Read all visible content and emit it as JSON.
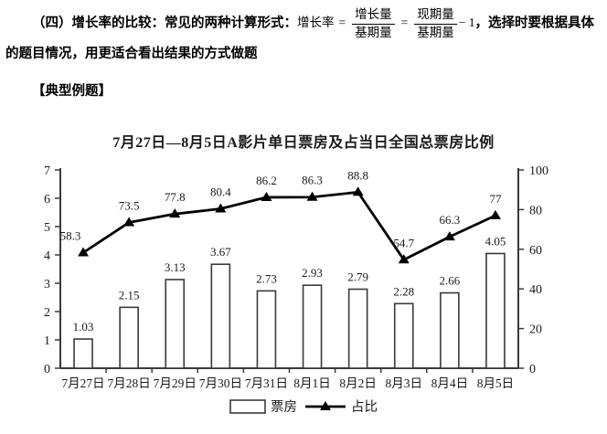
{
  "document": {
    "line1_prefix": "（四）增长率的比较：常见的两种计算形式：",
    "formula": {
      "lhs": "增长率",
      "eq1": "=",
      "frac1": {
        "num": "增长量",
        "den": "基期量"
      },
      "eq2": "=",
      "frac2": {
        "num": "现期量",
        "den": "基期量"
      },
      "tail": "− 1"
    },
    "line1_suffix": "，选择时",
    "line2": "要根据具体的题目情况，用更适合看出结果的方式做题",
    "section_header": "【典型例题】"
  },
  "chart_data": {
    "type": "combo",
    "title": "7月27日—8月5日A影片单日票房及占当日全国总票房比例",
    "categories": [
      "7月27日",
      "7月28日",
      "7月29日",
      "7月30日",
      "7月31日",
      "8月1日",
      "8月2日",
      "8月3日",
      "8月4日",
      "8月5日"
    ],
    "series": [
      {
        "name": "票房",
        "type": "bar",
        "axis": "left",
        "values": [
          1.03,
          2.15,
          3.13,
          3.67,
          2.73,
          2.93,
          2.79,
          2.28,
          2.66,
          4.05
        ]
      },
      {
        "name": "占比",
        "type": "line",
        "axis": "right",
        "values": [
          58.3,
          73.5,
          77.8,
          80.4,
          86.2,
          86.3,
          88.8,
          54.7,
          66.3,
          77
        ]
      }
    ],
    "left_axis": {
      "min": 0,
      "max": 7,
      "ticks": [
        0,
        1,
        2,
        3,
        4,
        5,
        6,
        7
      ]
    },
    "right_axis": {
      "min": 0,
      "max": 100,
      "ticks": [
        0,
        20,
        40,
        60,
        80,
        100
      ]
    },
    "legend_position": "bottom",
    "grid": false,
    "colors": {
      "bar_fill": "#ffffff",
      "bar_stroke": "#3a3a3a",
      "line": "#000000",
      "marker": "#000000",
      "axis": "#3a3a3a",
      "text": "#1a1a1a"
    }
  }
}
